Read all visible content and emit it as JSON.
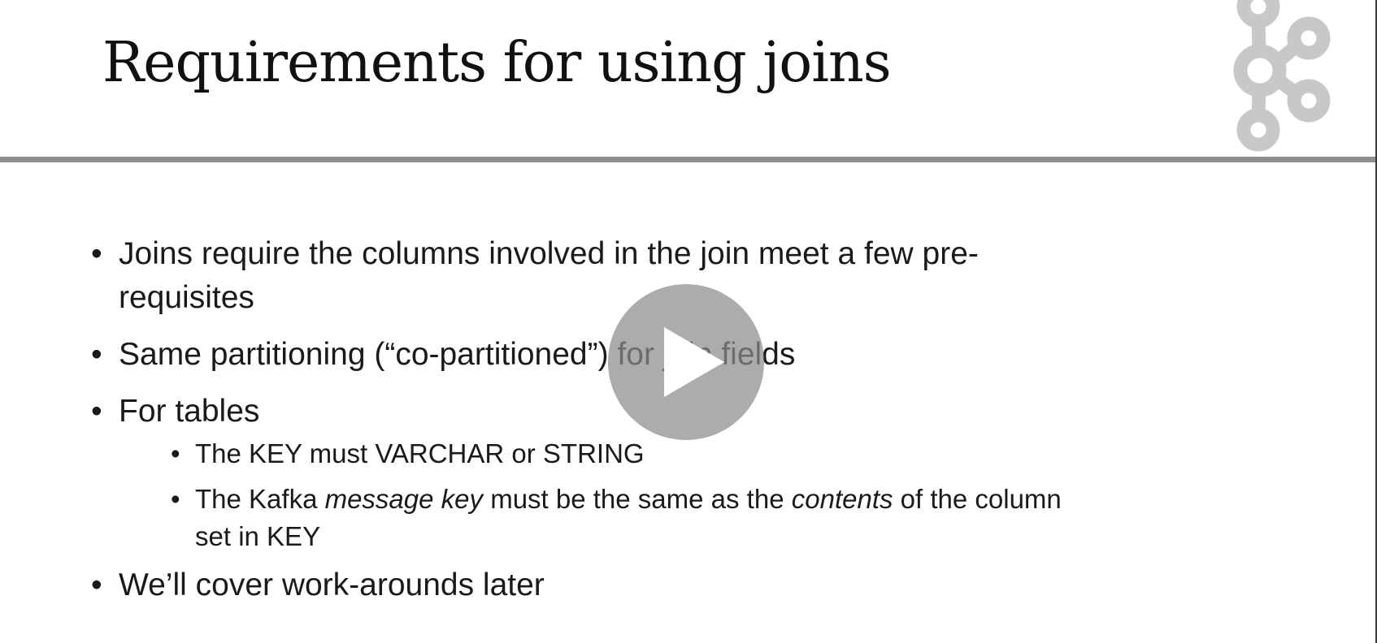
{
  "slide": {
    "title": "Requirements for using joins",
    "bullets": [
      {
        "text": "Joins require the columns involved in the join meet a few pre-requisites"
      },
      {
        "text": "Same partitioning (“co-partitioned”) for join fields"
      },
      {
        "text": "For tables",
        "sub_bullets": [
          {
            "text": "The KEY must VARCHAR or STRING"
          },
          {
            "prefix": "The Kafka ",
            "emph1": "message key",
            "middle": " must be the same as the ",
            "emph2": "contents",
            "suffix": " of the column set in KEY"
          }
        ]
      },
      {
        "text": "We’ll cover work-arounds later"
      }
    ]
  },
  "player": {
    "play_icon": "play-icon"
  },
  "logo": {
    "icon": "kafka-logo-icon"
  },
  "colors": {
    "title": "#111111",
    "text": "#1a1a1a",
    "divider": "#8f8f8f",
    "logo": "#c8c8c8",
    "play_overlay": "#8c8c8c"
  }
}
